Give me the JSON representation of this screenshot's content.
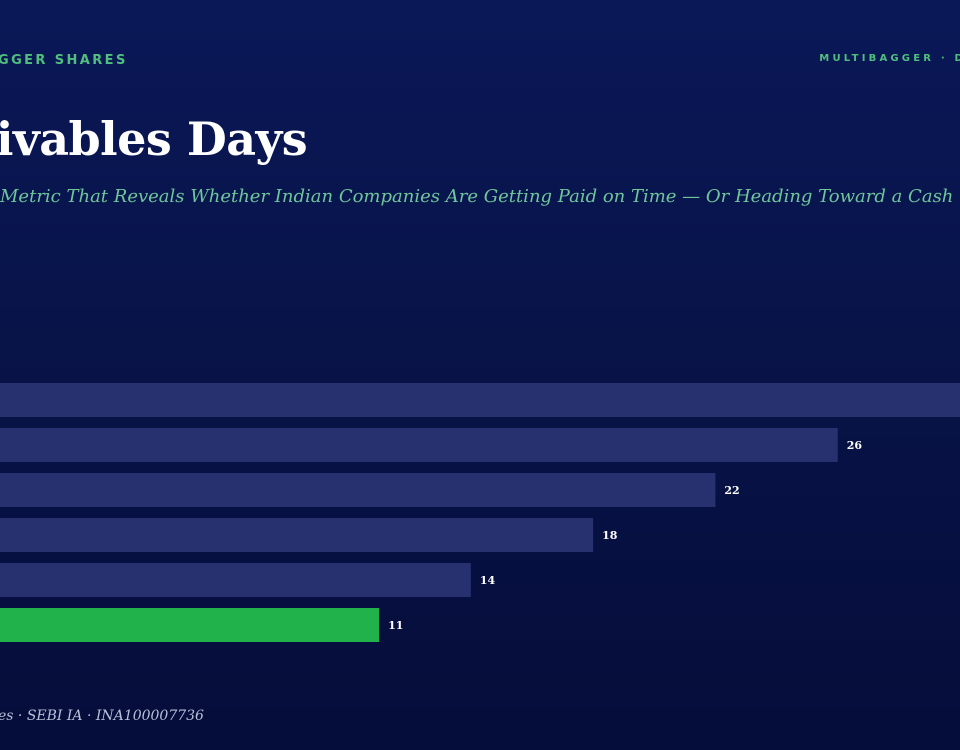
{
  "header": {
    "left_text": "GGER SHARES",
    "right_text": "MULTIBAGGER · D"
  },
  "title": "ivables Days",
  "subtitle": "Metric That Reveals Whether Indian Companies Are Getting Paid on Time — Or Heading Toward a Cash C",
  "footer": "es · SEBI IA · INA100007736",
  "colors": {
    "bar": "#27316f",
    "highlight": "#22b24c",
    "label": "#ffffff",
    "accent": "#4fbf7d"
  },
  "chart_data": {
    "type": "bar",
    "orientation": "horizontal",
    "values": [
      30,
      26,
      22,
      18,
      14,
      11
    ],
    "data_labels": [
      "",
      "26",
      "22",
      "18",
      "14",
      "11"
    ],
    "highlight_index": 5,
    "xlim": [
      -1.4,
      30
    ]
  }
}
